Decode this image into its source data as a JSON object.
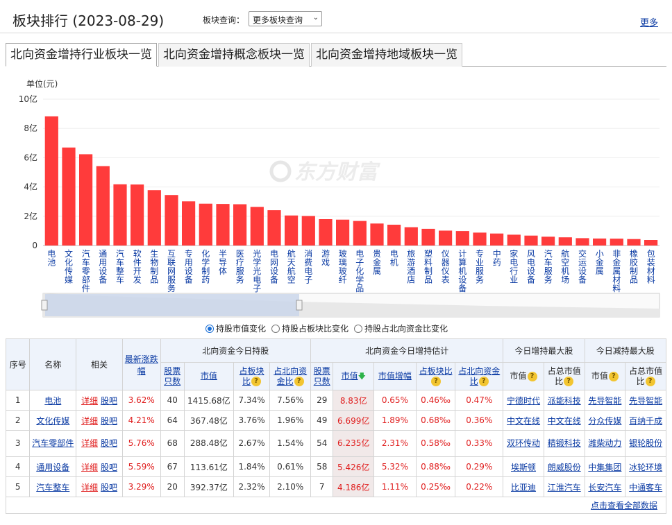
{
  "header": {
    "title": "板块排行 (2023-08-29)",
    "query_label": "板块查询：",
    "query_select": "更多板块查询",
    "more_link": "更多"
  },
  "tabs": [
    {
      "label": "北向资金增持行业板块一览",
      "active": true
    },
    {
      "label": "北向资金增持概念板块一览",
      "active": false
    },
    {
      "label": "北向资金增持地域板块一览",
      "active": false
    }
  ],
  "chart_data": {
    "type": "bar",
    "ylabel": "单位(元)",
    "ylim": [
      0,
      10
    ],
    "yticks": [
      "0",
      "2亿",
      "4亿",
      "6亿",
      "8亿",
      "10亿"
    ],
    "bar_color": "#ff3b3b",
    "watermark": "东方财富",
    "categories": [
      "电池",
      "文化传媒",
      "汽车零部件",
      "通用设备",
      "汽车整车",
      "软件开发",
      "生物制品",
      "互联网服务",
      "专用设备",
      "化学制药",
      "半导体",
      "医疗服务",
      "光学光电子",
      "电网设备",
      "航天航空",
      "消费电子",
      "游戏",
      "玻璃玻纤",
      "电子化学品",
      "贵金属",
      "电机",
      "旅游酒店",
      "塑料制品",
      "仪器仪表",
      "计算机设备",
      "专业服务",
      "中药",
      "家电行业",
      "风电设备",
      "汽车服务",
      "航空机场",
      "交运设备",
      "小金属",
      "非金属材料",
      "橡胶制品",
      "包装材料"
    ],
    "values": [
      8.83,
      6.699,
      6.235,
      5.426,
      4.186,
      4.17,
      3.78,
      3.45,
      3.02,
      2.86,
      2.84,
      2.82,
      2.64,
      2.41,
      2.05,
      2.02,
      1.8,
      1.77,
      1.68,
      1.5,
      1.42,
      1.25,
      1.14,
      1.02,
      0.99,
      0.88,
      0.82,
      0.74,
      0.68,
      0.6,
      0.56,
      0.5,
      0.48,
      0.47,
      0.44,
      0.38
    ]
  },
  "radios": [
    {
      "label": "持股市值变化",
      "checked": true
    },
    {
      "label": "持股占板块比变化",
      "checked": false
    },
    {
      "label": "持股占北向资金比变化",
      "checked": false
    }
  ],
  "table": {
    "head1": {
      "seq": "序号",
      "name": "名称",
      "related": "相关",
      "latest_change": "最新涨跌幅",
      "hold_today": "北向资金今日持股",
      "add_est": "北向资金今日增持估计",
      "top_add": "今日增持最大股",
      "top_reduce": "今日减持最大股"
    },
    "head2": {
      "h_count": "股票只数",
      "h_value": "市值",
      "h_sector_ratio": "占板块比",
      "h_nb_ratio": "占北向资金比",
      "a_count": "股票只数",
      "a_value": "市值",
      "a_growth": "市值增幅",
      "a_sector_ratio": "占板块比",
      "a_nb_ratio": "占北向资金比",
      "ta_value": "市值",
      "ta_ratio": "占总市值比",
      "tr_value": "市值",
      "tr_ratio": "占总市值比"
    },
    "detail_label": "详细",
    "guba_label": "股吧",
    "rows": [
      {
        "seq": "1",
        "name": "电池",
        "change": "3.62%",
        "h_count": "40",
        "h_value": "1415.68亿",
        "h_sector": "7.34%",
        "h_nb": "7.56%",
        "a_count": "29",
        "a_value": "8.83亿",
        "a_growth": "0.65%",
        "a_sector": "0.46‰",
        "a_nb": "0.47%",
        "ta_value": "宁德时代",
        "ta_ratio": "派能科技",
        "tr_value": "先导智能",
        "tr_ratio": "先导智能"
      },
      {
        "seq": "2",
        "name": "文化传媒",
        "change": "4.21%",
        "h_count": "64",
        "h_value": "367.48亿",
        "h_sector": "3.76%",
        "h_nb": "1.96%",
        "a_count": "49",
        "a_value": "6.699亿",
        "a_growth": "1.89%",
        "a_sector": "0.68‰",
        "a_nb": "0.36%",
        "ta_value": "中文在线",
        "ta_ratio": "中文在线",
        "tr_value": "分众传媒",
        "tr_ratio": "百纳千成"
      },
      {
        "seq": "3",
        "name": "汽车零部件",
        "change": "5.76%",
        "h_count": "68",
        "h_value": "288.48亿",
        "h_sector": "2.67%",
        "h_nb": "1.54%",
        "a_count": "54",
        "a_value": "6.235亿",
        "a_growth": "2.31%",
        "a_sector": "0.58‰",
        "a_nb": "0.33%",
        "ta_value": "双环传动",
        "ta_ratio": "精锻科技",
        "tr_value": "潍柴动力",
        "tr_ratio": "银轮股份"
      },
      {
        "seq": "4",
        "name": "通用设备",
        "change": "5.59%",
        "h_count": "67",
        "h_value": "113.61亿",
        "h_sector": "1.84%",
        "h_nb": "0.61%",
        "a_count": "58",
        "a_value": "5.426亿",
        "a_growth": "5.32%",
        "a_sector": "0.88‰",
        "a_nb": "0.29%",
        "ta_value": "埃斯顿",
        "ta_ratio": "朗威股份",
        "tr_value": "中集集团",
        "tr_ratio": "冰轮环境"
      },
      {
        "seq": "5",
        "name": "汽车整车",
        "change": "3.29%",
        "h_count": "20",
        "h_value": "392.37亿",
        "h_sector": "2.32%",
        "h_nb": "2.10%",
        "a_count": "7",
        "a_value": "4.186亿",
        "a_growth": "1.11%",
        "a_sector": "0.25‰",
        "a_nb": "0.22%",
        "ta_value": "比亚迪",
        "ta_ratio": "江淮汽车",
        "tr_value": "长安汽车",
        "tr_ratio": "中通客车"
      }
    ],
    "footer_link": "点击查看全部数据"
  }
}
